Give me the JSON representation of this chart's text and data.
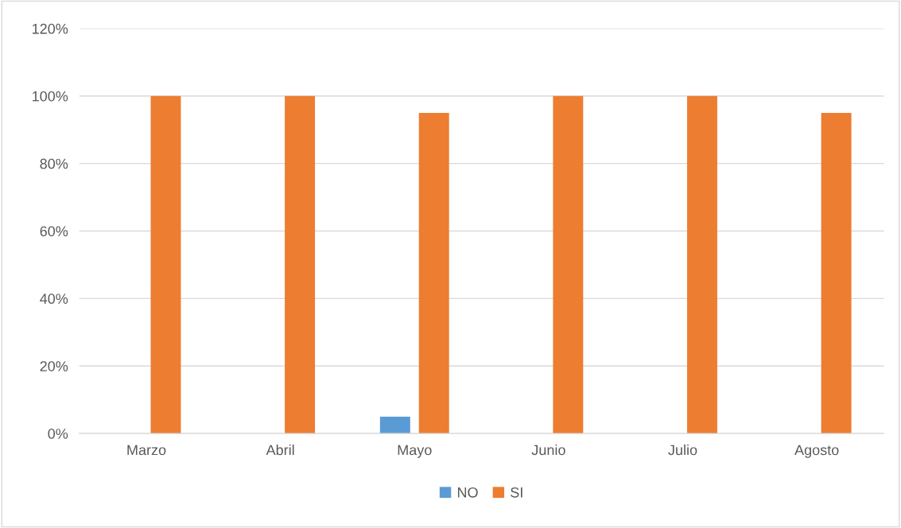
{
  "chart_data": {
    "type": "bar",
    "categories": [
      "Marzo",
      "Abril",
      "Mayo",
      "Junio",
      "Julio",
      "Agosto"
    ],
    "series": [
      {
        "name": "NO",
        "color": "#5b9bd5",
        "values": [
          0,
          0,
          5,
          0,
          0,
          0
        ]
      },
      {
        "name": "SI",
        "color": "#ed7d31",
        "values": [
          100,
          100,
          95,
          100,
          100,
          95
        ]
      }
    ],
    "ylim": [
      0,
      120
    ],
    "yticks": [
      {
        "value": 0,
        "label": "0%"
      },
      {
        "value": 20,
        "label": "20%"
      },
      {
        "value": 40,
        "label": "40%"
      },
      {
        "value": 60,
        "label": "60%"
      },
      {
        "value": 80,
        "label": "80%"
      },
      {
        "value": 100,
        "label": "100%"
      },
      {
        "value": 120,
        "label": "120%"
      }
    ],
    "grid": "y",
    "legend": "bottom"
  }
}
